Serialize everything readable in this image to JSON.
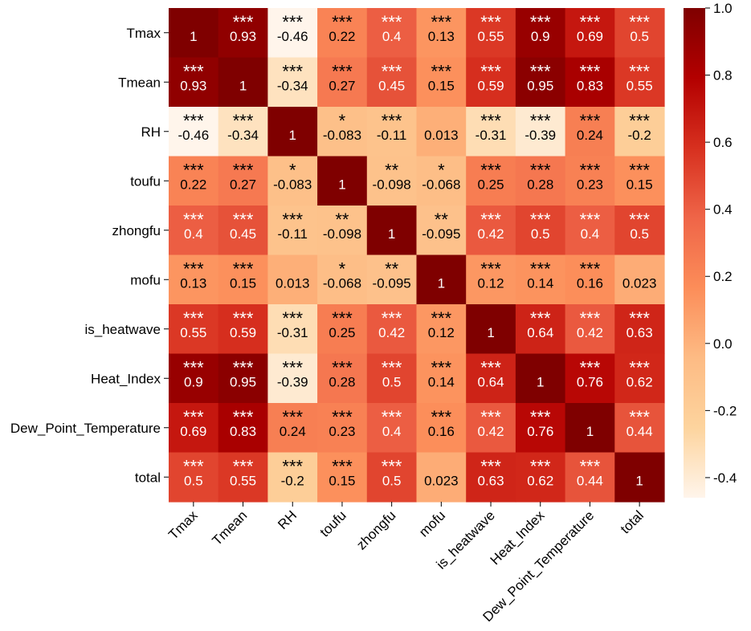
{
  "chart_data": {
    "type": "heatmap",
    "title": "",
    "rows": [
      "Tmax",
      "Tmean",
      "RH",
      "toufu",
      "zhongfu",
      "mofu",
      "is_heatwave",
      "Heat_Index",
      "Dew_Point_Temperature",
      "total"
    ],
    "columns": [
      "Tmax",
      "Tmean",
      "RH",
      "toufu",
      "zhongfu",
      "mofu",
      "is_heatwave",
      "Heat_Index",
      "Dew_Point_Temperature",
      "total"
    ],
    "values": [
      [
        "1",
        "0.93",
        "-0.46",
        "0.22",
        "0.4",
        "0.13",
        "0.55",
        "0.9",
        "0.69",
        "0.5"
      ],
      [
        "0.93",
        "1",
        "-0.34",
        "0.27",
        "0.45",
        "0.15",
        "0.59",
        "0.95",
        "0.83",
        "0.55"
      ],
      [
        "-0.46",
        "-0.34",
        "1",
        "-0.083",
        "-0.11",
        "0.013",
        "-0.31",
        "-0.39",
        "0.24",
        "-0.2"
      ],
      [
        "0.22",
        "0.27",
        "-0.083",
        "1",
        "-0.098",
        "-0.068",
        "0.25",
        "0.28",
        "0.23",
        "0.15"
      ],
      [
        "0.4",
        "0.45",
        "-0.11",
        "-0.098",
        "1",
        "-0.095",
        "0.42",
        "0.5",
        "0.4",
        "0.5"
      ],
      [
        "0.13",
        "0.15",
        "0.013",
        "-0.068",
        "-0.095",
        "1",
        "0.12",
        "0.14",
        "0.16",
        "0.023"
      ],
      [
        "0.55",
        "0.59",
        "-0.31",
        "0.25",
        "0.42",
        "0.12",
        "1",
        "0.64",
        "0.42",
        "0.63"
      ],
      [
        "0.9",
        "0.95",
        "-0.39",
        "0.28",
        "0.5",
        "0.14",
        "0.64",
        "1",
        "0.76",
        "0.62"
      ],
      [
        "0.69",
        "0.83",
        "0.24",
        "0.23",
        "0.4",
        "0.16",
        "0.42",
        "0.76",
        "1",
        "0.44"
      ],
      [
        "0.5",
        "0.55",
        "-0.2",
        "0.15",
        "0.5",
        "0.023",
        "0.63",
        "0.62",
        "0.44",
        "1"
      ]
    ],
    "significance": [
      [
        "",
        "***",
        "***",
        "***",
        "***",
        "***",
        "***",
        "***",
        "***",
        "***"
      ],
      [
        "***",
        "",
        "***",
        "***",
        "***",
        "***",
        "***",
        "***",
        "***",
        "***"
      ],
      [
        "***",
        "***",
        "",
        "*",
        "***",
        "",
        "***",
        "***",
        "***",
        "***"
      ],
      [
        "***",
        "***",
        "*",
        "",
        "**",
        "*",
        "***",
        "***",
        "***",
        "***"
      ],
      [
        "***",
        "***",
        "***",
        "**",
        "",
        "**",
        "***",
        "***",
        "***",
        "***"
      ],
      [
        "***",
        "***",
        "",
        "*",
        "**",
        "",
        "***",
        "***",
        "***",
        ""
      ],
      [
        "***",
        "***",
        "***",
        "***",
        "***",
        "***",
        "",
        "***",
        "***",
        "***"
      ],
      [
        "***",
        "***",
        "***",
        "***",
        "***",
        "***",
        "***",
        "",
        "***",
        "***"
      ],
      [
        "***",
        "***",
        "***",
        "***",
        "***",
        "***",
        "***",
        "***",
        "",
        "***"
      ],
      [
        "***",
        "***",
        "***",
        "***",
        "***",
        "",
        "***",
        "***",
        "***",
        ""
      ]
    ],
    "colorbar": {
      "min": -0.46,
      "max": 1.0,
      "ticks": [
        "1.0",
        "0.8",
        "0.6",
        "0.4",
        "0.2",
        "0.0",
        "-0.2",
        "-0.4"
      ],
      "colormap": "OrRd",
      "stops": [
        "#fff5eb",
        "#fdd49e",
        "#fdbb84",
        "#fc8d59",
        "#ef6548",
        "#d7301f",
        "#b30000",
        "#7f0000"
      ]
    },
    "xlabel": "",
    "ylabel": "",
    "grid": false,
    "legend": "right"
  }
}
